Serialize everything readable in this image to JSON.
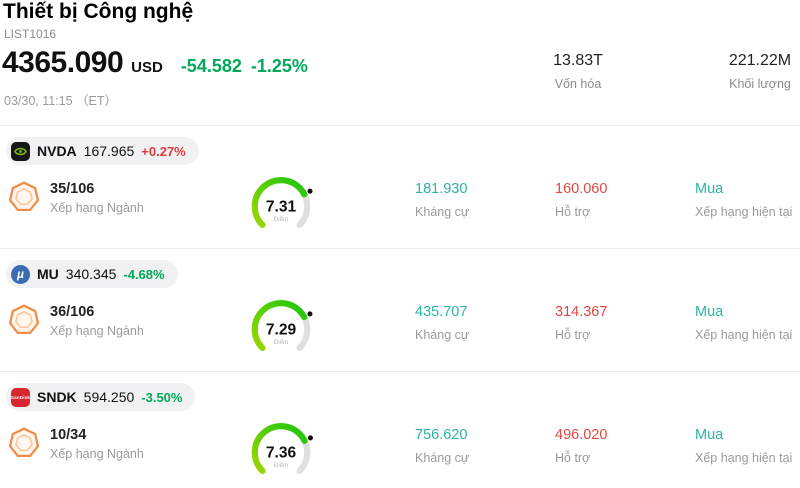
{
  "header": {
    "title": "Thiết bị Công nghệ",
    "list_id": "LIST1016",
    "price": "4365.090",
    "currency": "USD",
    "change_abs": "-54.582",
    "change_pct": "-1.25%",
    "direction": "down",
    "datetime": "03/30, 11:15 （ET）",
    "market_cap": {
      "value": "13.83T",
      "label": "Vốn hóa"
    },
    "volume": {
      "value": "221.22M",
      "label": "Khối lượng"
    }
  },
  "labels": {
    "rank": "Xếp hạng Ngành",
    "score": "Điểm",
    "resistance": "Kháng cự",
    "support": "Hỗ trợ",
    "rating": "Xếp hạng hiện tại"
  },
  "colors": {
    "up_red": "#e23b3b",
    "down_green": "#00a859",
    "teal": "#2ab3a6",
    "support_red": "#e0483f",
    "gauge_green": "#2ec40c",
    "badge_orange": "#ef8e4a"
  },
  "gauge_max": 10,
  "stocks": [
    {
      "ticker": "NVDA",
      "price": "167.965",
      "change_pct": "+0.27%",
      "direction": "up",
      "logo": "nvidia-logo",
      "logo_text": "",
      "rank": "35/106",
      "score": "7.31",
      "resistance": "181.930",
      "support": "160.060",
      "rating": "Mua"
    },
    {
      "ticker": "MU",
      "price": "340.345",
      "change_pct": "-4.68%",
      "direction": "down",
      "logo": "micron-logo",
      "logo_text": "µ",
      "rank": "36/106",
      "score": "7.29",
      "resistance": "435.707",
      "support": "314.367",
      "rating": "Mua"
    },
    {
      "ticker": "SNDK",
      "price": "594.250",
      "change_pct": "-3.50%",
      "direction": "down",
      "logo": "sandisk-logo",
      "logo_text": "SanDisk",
      "rank": "10/34",
      "score": "7.36",
      "resistance": "756.620",
      "support": "496.020",
      "rating": "Mua"
    }
  ]
}
